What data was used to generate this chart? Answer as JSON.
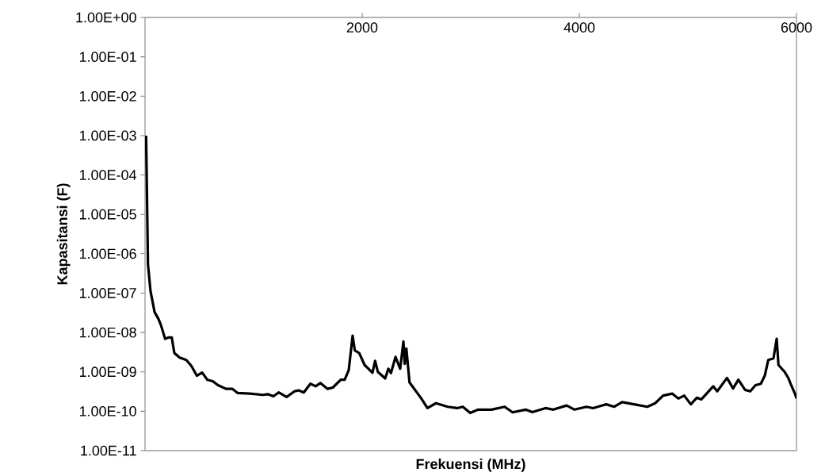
{
  "chart_data": {
    "type": "line",
    "xlabel": "Frekuensi (MHz)",
    "ylabel": "Kapasitansi (F)",
    "log": "y",
    "color": "#000000",
    "xlim": [
      0,
      6000
    ],
    "xticks": [
      2000,
      4000,
      6000
    ],
    "ylim": [
      1e-11,
      1
    ],
    "yticks": [
      {
        "value": 1,
        "label": "1.00E+00"
      },
      {
        "value": 0.1,
        "label": "1.00E-01"
      },
      {
        "value": 0.01,
        "label": "1.00E-02"
      },
      {
        "value": 0.001,
        "label": "1.00E-03"
      },
      {
        "value": 0.0001,
        "label": "1.00E-04"
      },
      {
        "value": 1e-05,
        "label": "1.00E-05"
      },
      {
        "value": 1e-06,
        "label": "1.00E-06"
      },
      {
        "value": 1e-07,
        "label": "1.00E-07"
      },
      {
        "value": 1e-08,
        "label": "1.00E-08"
      },
      {
        "value": 1e-09,
        "label": "1.00E-09"
      },
      {
        "value": 1e-10,
        "label": "1.00E-10"
      },
      {
        "value": 1e-11,
        "label": "1.00E-11"
      }
    ],
    "x": [
      10,
      27,
      51,
      88,
      124,
      148,
      185,
      221,
      246,
      270,
      319,
      380,
      428,
      477,
      526,
      574,
      623,
      672,
      745,
      805,
      854,
      964,
      1085,
      1134,
      1182,
      1231,
      1304,
      1377,
      1414,
      1462,
      1523,
      1571,
      1615,
      1681,
      1730,
      1803,
      1839,
      1876,
      1912,
      1932,
      1973,
      2022,
      2095,
      2119,
      2144,
      2212,
      2241,
      2265,
      2307,
      2350,
      2380,
      2392,
      2407,
      2436,
      2545,
      2601,
      2679,
      2788,
      2874,
      2927,
      2995,
      3068,
      3190,
      3312,
      3385,
      3506,
      3567,
      3688,
      3761,
      3883,
      3956,
      4066,
      4126,
      4248,
      4321,
      4394,
      4504,
      4626,
      4699,
      4772,
      4857,
      4912,
      4966,
      5027,
      5082,
      5124,
      5234,
      5270,
      5360,
      5416,
      5465,
      5526,
      5574,
      5623,
      5672,
      5708,
      5740,
      5788,
      5818,
      5834,
      5891,
      5927,
      5951,
      5988,
      6000
    ],
    "values": [
      0.001,
      5.4e-07,
      1.1e-07,
      3.3e-08,
      2.2e-08,
      1.5e-08,
      6.9e-09,
      7.5e-09,
      7.5e-09,
      3e-09,
      2.3e-09,
      2e-09,
      1.4e-09,
      8e-10,
      9.6e-10,
      6.3e-10,
      5.8e-10,
      4.6e-10,
      3.7e-10,
      3.7e-10,
      2.9e-10,
      2.8e-10,
      2.6e-10,
      2.7e-10,
      2.4e-10,
      3e-10,
      2.3e-10,
      3.2e-10,
      3.4e-10,
      3e-10,
      5e-10,
      4.3e-10,
      5.2e-10,
      3.7e-10,
      4e-10,
      6.3e-10,
      6.3e-10,
      1.1e-09,
      8.3e-09,
      3.5e-09,
      3e-09,
      1.5e-09,
      9.5e-10,
      1.9e-09,
      1e-09,
      6.8e-10,
      1.2e-09,
      9.3e-10,
      2.4e-09,
      1.2e-09,
      5.9e-09,
      1.6e-09,
      3.9e-09,
      5.4e-10,
      2.1e-10,
      1.2e-10,
      1.6e-10,
      1.3e-10,
      1.2e-10,
      1.3e-10,
      9.1e-11,
      1.1e-10,
      1.1e-10,
      1.3e-10,
      9.4e-11,
      1.1e-10,
      9.5e-11,
      1.2e-10,
      1.1e-10,
      1.4e-10,
      1.1e-10,
      1.3e-10,
      1.2e-10,
      1.5e-10,
      1.3e-10,
      1.7e-10,
      1.5e-10,
      1.3e-10,
      1.6e-10,
      2.5e-10,
      2.8e-10,
      2.1e-10,
      2.5e-10,
      1.5e-10,
      2.2e-10,
      2e-10,
      4.3e-10,
      3.2e-10,
      7e-10,
      3.8e-10,
      6.3e-10,
      3.5e-10,
      3.2e-10,
      4.6e-10,
      5e-10,
      8e-10,
      2e-09,
      2.2e-09,
      6.9e-09,
      1.5e-09,
      1e-09,
      6.8e-10,
      4.6e-10,
      2.7e-10,
      2.1e-10
    ]
  }
}
